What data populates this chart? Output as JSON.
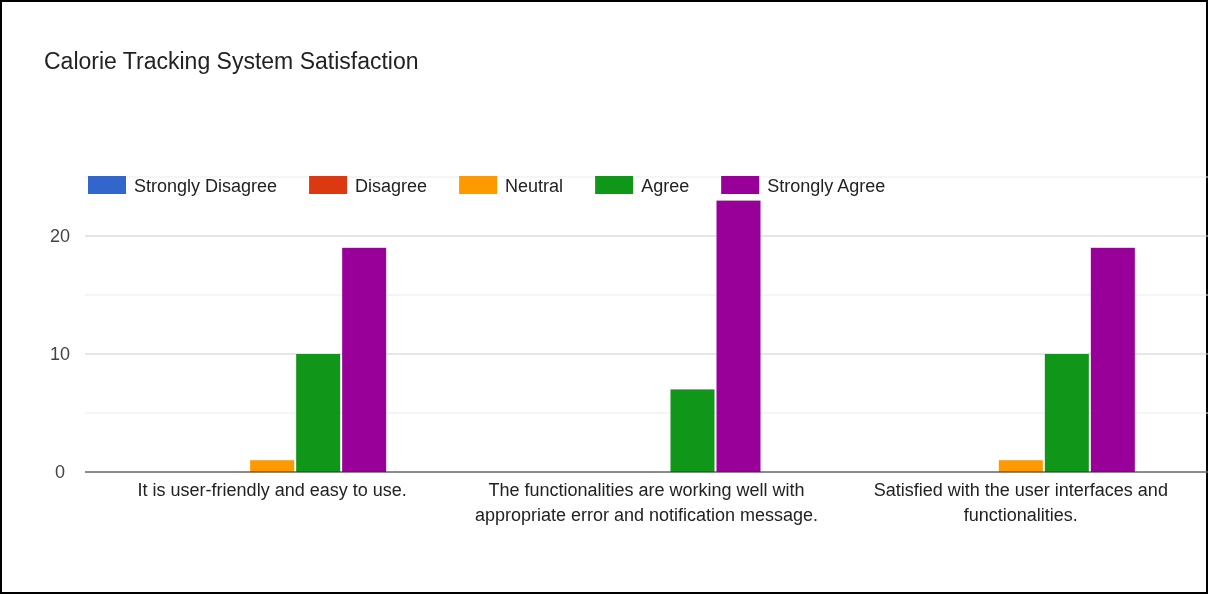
{
  "chart_data": {
    "type": "bar",
    "title": "Calorie Tracking System Satisfaction",
    "categories": [
      "It is user-friendly and easy to use.",
      "The functionalities are working well with appropriate error and notification message.",
      "Satisfied with the user interfaces and functionalities."
    ],
    "series": [
      {
        "name": "Strongly Disagree",
        "color": "#3366cc",
        "values": [
          0,
          0,
          0
        ]
      },
      {
        "name": "Disagree",
        "color": "#dc3912",
        "values": [
          0,
          0,
          0
        ]
      },
      {
        "name": "Neutral",
        "color": "#ff9900",
        "values": [
          1,
          0,
          1
        ]
      },
      {
        "name": "Agree",
        "color": "#109618",
        "values": [
          10,
          7,
          10
        ]
      },
      {
        "name": "Strongly Agree",
        "color": "#990099",
        "values": [
          19,
          23,
          19
        ]
      }
    ],
    "ylim": [
      0,
      25
    ],
    "yticks": [
      0,
      {
        "value": 5,
        "label": null
      },
      10,
      {
        "value": 15,
        "label": null
      },
      20,
      {
        "value": 25,
        "label": null
      }
    ],
    "grid": "y",
    "legend": "top left"
  }
}
